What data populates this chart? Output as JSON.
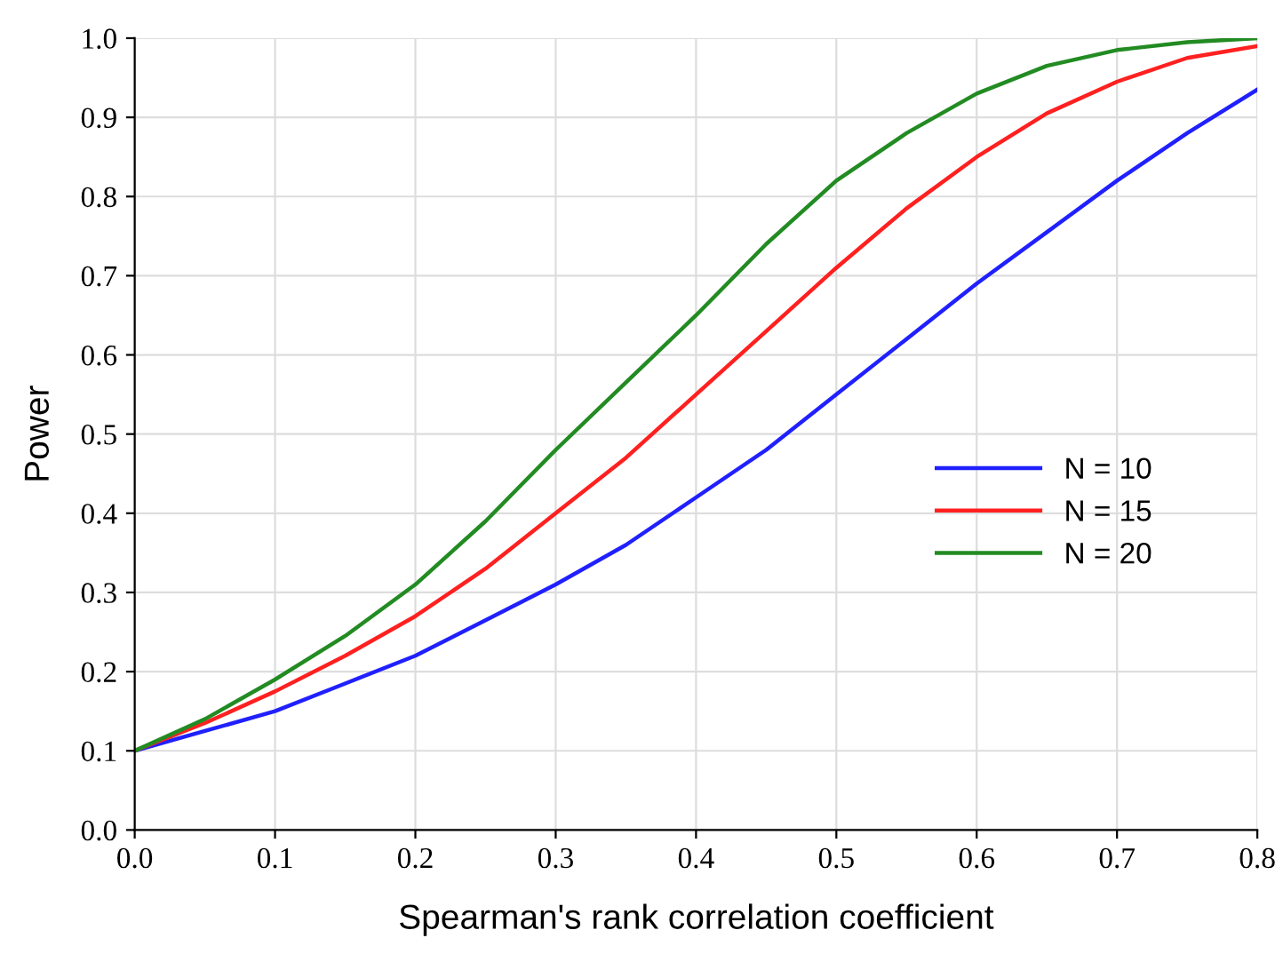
{
  "chart_data": {
    "type": "line",
    "xlabel": "Spearman's rank correlation coefficient",
    "ylabel": "Power",
    "x": [
      0,
      0.05,
      0.1,
      0.15,
      0.2,
      0.25,
      0.3,
      0.35,
      0.4,
      0.45,
      0.5,
      0.55,
      0.6,
      0.65,
      0.7,
      0.75,
      0.8
    ],
    "series": [
      {
        "name": "N = 10",
        "color": "#2020ff",
        "values": [
          0.1,
          0.125,
          0.15,
          0.185,
          0.22,
          0.265,
          0.31,
          0.36,
          0.42,
          0.48,
          0.55,
          0.62,
          0.69,
          0.755,
          0.82,
          0.88,
          0.935
        ]
      },
      {
        "name": "N = 15",
        "color": "#ff2020",
        "values": [
          0.1,
          0.135,
          0.175,
          0.22,
          0.27,
          0.33,
          0.4,
          0.47,
          0.55,
          0.63,
          0.71,
          0.785,
          0.85,
          0.905,
          0.945,
          0.975,
          0.99
        ]
      },
      {
        "name": "N = 20",
        "color": "#228b22",
        "values": [
          0.1,
          0.14,
          0.19,
          0.245,
          0.31,
          0.39,
          0.48,
          0.565,
          0.65,
          0.74,
          0.82,
          0.88,
          0.93,
          0.965,
          0.985,
          0.995,
          1.0
        ]
      }
    ],
    "xlim": [
      0,
      0.8
    ],
    "xticks": [
      {
        "value": 0,
        "label": "0.0"
      },
      {
        "value": 0.1,
        "label": "0.1"
      },
      {
        "value": 0.2,
        "label": "0.2"
      },
      {
        "value": 0.3,
        "label": "0.3"
      },
      {
        "value": 0.4,
        "label": "0.4"
      },
      {
        "value": 0.5,
        "label": "0.5"
      },
      {
        "value": 0.6,
        "label": "0.6"
      },
      {
        "value": 0.7,
        "label": "0.7"
      },
      {
        "value": 0.8,
        "label": "0.8"
      }
    ],
    "ylim": [
      0,
      1
    ],
    "yticks": [
      {
        "value": 0,
        "label": "0.0"
      },
      {
        "value": 0.1,
        "label": "0.1"
      },
      {
        "value": 0.2,
        "label": "0.2"
      },
      {
        "value": 0.3,
        "label": "0.3"
      },
      {
        "value": 0.4,
        "label": "0.4"
      },
      {
        "value": 0.5,
        "label": "0.5"
      },
      {
        "value": 0.6,
        "label": "0.6"
      },
      {
        "value": 0.7,
        "label": "0.7"
      },
      {
        "value": 0.8,
        "label": "0.8"
      },
      {
        "value": 0.9,
        "label": "0.9"
      },
      {
        "value": 1.0,
        "label": "1.0"
      }
    ],
    "grid": true,
    "legend": "right"
  }
}
